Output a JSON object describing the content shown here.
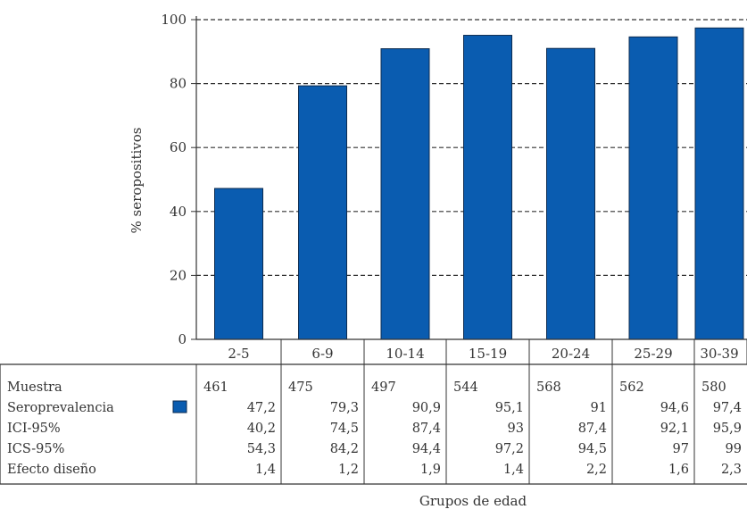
{
  "chart_data": {
    "type": "bar",
    "categories": [
      "2-5",
      "6-9",
      "10-14",
      "15-19",
      "20-24",
      "25-29",
      "30-39"
    ],
    "series": [
      {
        "name": "Seroprevalencia",
        "values": [
          47.2,
          79.3,
          90.9,
          95.1,
          91,
          94.6,
          97.4
        ],
        "color": "#0a5cb0"
      }
    ],
    "title": "",
    "xlabel": "Grupos de edad",
    "ylabel": "% seropositivos",
    "ylim": [
      0,
      100
    ],
    "yticks": [
      "0",
      "20",
      "40",
      "60",
      "80",
      "100"
    ],
    "grid": "dashed horizontal",
    "table": {
      "rows": [
        {
          "label": "Muestra",
          "values": [
            "461",
            "475",
            "497",
            "544",
            "568",
            "562",
            "580"
          ]
        },
        {
          "label": "Seroprevalencia",
          "values": [
            "47,2",
            "79,3",
            "90,9",
            "95,1",
            "91",
            "94,6",
            "97,4"
          ],
          "legend_swatch": true
        },
        {
          "label": "ICI-95%",
          "values": [
            "40,2",
            "74,5",
            "87,4",
            "93",
            "87,4",
            "92,1",
            "95,9"
          ]
        },
        {
          "label": "ICS-95%",
          "values": [
            "54,3",
            "84,2",
            "94,4",
            "97,2",
            "94,5",
            "97",
            "99"
          ]
        },
        {
          "label": "Efecto diseño",
          "values": [
            "1,4",
            "1,2",
            "1,9",
            "1,4",
            "2,2",
            "1,6",
            "2,3"
          ]
        }
      ]
    }
  }
}
